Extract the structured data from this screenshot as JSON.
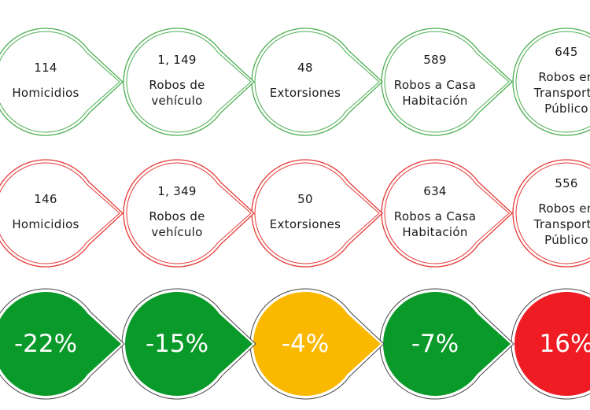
{
  "colors": {
    "row1_stroke": "#4caf50",
    "row2_stroke": "#e53935",
    "green": "#0a9a2a",
    "yellow": "#fbb800",
    "red": "#ef1c24"
  },
  "rows": [
    {
      "items": [
        {
          "value": "114",
          "label": "Homicidios"
        },
        {
          "value": "1, 149",
          "label": "Robos de\nvehículo"
        },
        {
          "value": "48",
          "label": "Extorsiones"
        },
        {
          "value": "589",
          "label": "Robos a Casa\nHabitación"
        },
        {
          "value": "645",
          "label": "Robos en\nTransporte\nPúblico"
        }
      ]
    },
    {
      "items": [
        {
          "value": "146",
          "label": "Homicidios"
        },
        {
          "value": "1, 349",
          "label": "Robos de\nvehículo"
        },
        {
          "value": "50",
          "label": "Extorsiones"
        },
        {
          "value": "634",
          "label": "Robos a Casa\nHabitación"
        },
        {
          "value": "556",
          "label": "Robos en\nTransporte\nPúblico"
        }
      ]
    }
  ],
  "changes": [
    {
      "text": "-22%",
      "status": "green"
    },
    {
      "text": "-15%",
      "status": "green"
    },
    {
      "text": "-4%",
      "status": "yellow"
    },
    {
      "text": "-7%",
      "status": "green"
    },
    {
      "text": "16%",
      "status": "red"
    }
  ]
}
